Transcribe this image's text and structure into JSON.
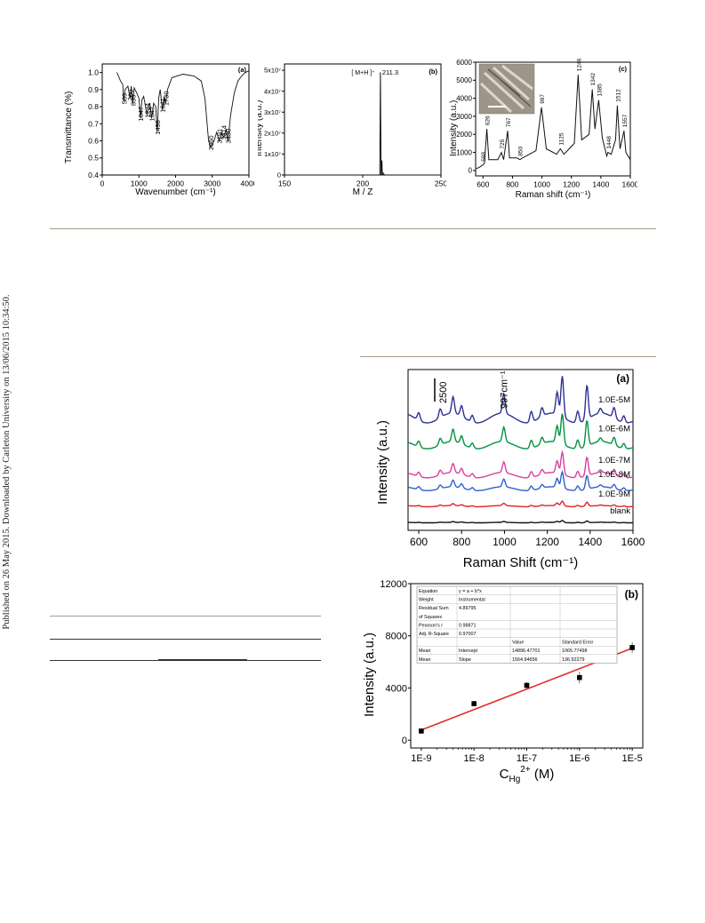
{
  "side_note": "Published on 26 May 2015. Downloaded by Carleton University on 13/06/2015 10:34:50.",
  "chart_data": [
    {
      "type": "line",
      "panel_label": "(a)",
      "xlabel": "Wavenumber (cm⁻¹)",
      "ylabel": "Transmittance (%)",
      "xlim": [
        0,
        4000
      ],
      "ylim": [
        0.4,
        1.05
      ],
      "x_ticks": [
        "0",
        "1000",
        "2000",
        "3000",
        "4000"
      ],
      "y_ticks": [
        "0.4",
        "0.5",
        "0.6",
        "0.7",
        "0.8",
        "0.9",
        "1.0"
      ],
      "annotations": [
        "589",
        "760",
        "835",
        "1047",
        "1224",
        "1347",
        "1498",
        "1641",
        "1730",
        "2960",
        "3191",
        "3314",
        "3430"
      ],
      "series": [
        {
          "x": [
            400,
            500,
            560,
            589,
            620,
            700,
            760,
            790,
            835,
            870,
            940,
            1000,
            1047,
            1080,
            1130,
            1180,
            1224,
            1260,
            1300,
            1347,
            1400,
            1460,
            1498,
            1540,
            1580,
            1641,
            1690,
            1730,
            1780,
            1900,
            2200,
            2500,
            2700,
            2800,
            2900,
            2960,
            3050,
            3120,
            3191,
            3250,
            3314,
            3380,
            3430,
            3500,
            3600,
            3700,
            3800,
            3900,
            4000
          ],
          "y": [
            1.0,
            0.95,
            0.93,
            0.83,
            0.9,
            0.92,
            0.85,
            0.92,
            0.82,
            0.91,
            0.88,
            0.85,
            0.73,
            0.84,
            0.86,
            0.8,
            0.75,
            0.8,
            0.82,
            0.73,
            0.82,
            0.8,
            0.65,
            0.85,
            0.9,
            0.78,
            0.86,
            0.82,
            0.9,
            0.97,
            0.99,
            0.98,
            0.95,
            0.85,
            0.6,
            0.56,
            0.6,
            0.65,
            0.6,
            0.65,
            0.62,
            0.67,
            0.6,
            0.75,
            0.88,
            0.95,
            0.98,
            1.0,
            1.01
          ]
        }
      ]
    },
    {
      "type": "line",
      "panel_label": "(b)",
      "xlabel": "M / Z",
      "ylabel": "Intensity (a.u.)",
      "xlim": [
        150,
        250
      ],
      "ylim": [
        0,
        53000000
      ],
      "x_ticks": [
        "150",
        "200",
        "250"
      ],
      "y_ticks": [
        "0",
        "1x10⁷",
        "2x10⁷",
        "3x10⁷",
        "4x10⁷",
        "5x10⁷"
      ],
      "annotations": [
        "[ M+H ]⁺",
        "211.3"
      ],
      "series": [
        {
          "x": [
            150,
            205,
            210.9,
            211.3,
            211.7,
            212.3,
            212.5,
            212.9,
            214,
            230,
            250
          ],
          "y": [
            0,
            0,
            0,
            49000000,
            0,
            7000000,
            0,
            1000000,
            0,
            0,
            0
          ]
        }
      ]
    },
    {
      "type": "line",
      "panel_label": "(c)",
      "xlabel": "Raman shift (cm⁻¹)",
      "ylabel": "Intensity (a.u.)",
      "xlim": [
        550,
        1600
      ],
      "ylim": [
        -300,
        6000
      ],
      "x_ticks": [
        "600",
        "800",
        "1000",
        "1200",
        "1400",
        "1600"
      ],
      "y_ticks": [
        "0",
        "1000",
        "2000",
        "3000",
        "4000",
        "5000",
        "6000"
      ],
      "annotations": [
        "598",
        "626",
        "725",
        "767",
        "850",
        "997",
        "1125",
        "1246",
        "1342",
        "1385",
        "1448",
        "1512",
        "1557"
      ],
      "series": [
        {
          "x": [
            555,
            580,
            598,
            610,
            626,
            640,
            700,
            725,
            740,
            767,
            780,
            830,
            850,
            870,
            960,
            997,
            1030,
            1100,
            1125,
            1150,
            1220,
            1246,
            1270,
            1320,
            1342,
            1360,
            1385,
            1410,
            1440,
            1448,
            1470,
            1500,
            1512,
            1530,
            1557,
            1570,
            1600
          ],
          "y": [
            100,
            200,
            300,
            400,
            2300,
            600,
            600,
            1000,
            600,
            2200,
            700,
            700,
            600,
            700,
            1100,
            3500,
            1200,
            900,
            1200,
            900,
            1500,
            5300,
            1700,
            2000,
            4500,
            2300,
            3900,
            1800,
            800,
            1000,
            900,
            1700,
            3600,
            1200,
            2200,
            1000,
            600
          ]
        }
      ]
    },
    {
      "type": "line",
      "panel_label": "(a)",
      "xlabel": "Raman Shift (cm⁻¹)",
      "ylabel": "Intensity (a.u.)",
      "xlim": [
        550,
        1600
      ],
      "x_ticks": [
        "600",
        "800",
        "1000",
        "1200",
        "1400",
        "1600"
      ],
      "scale_bar": "2500",
      "peak_label": "997cm⁻¹",
      "series": [
        {
          "name": "1.0E-5M",
          "color": "#2e3192",
          "offset": 5.4,
          "amp": 1.0
        },
        {
          "name": "1.0E-6M",
          "color": "#00923f",
          "offset": 4.0,
          "amp": 0.75
        },
        {
          "name": "1.0E-7M",
          "color": "#d83fa4",
          "offset": 2.45,
          "amp": 0.55
        },
        {
          "name": "1.0E-8M",
          "color": "#2f5fcf",
          "offset": 1.75,
          "amp": 0.4
        },
        {
          "name": "1.0E-9M",
          "color": "#e21f26",
          "offset": 0.85,
          "amp": 0.12
        },
        {
          "name": "blank",
          "color": "#111111",
          "offset": 0.0,
          "amp": 0.05
        }
      ],
      "peaks": [
        [
          600,
          0.4
        ],
        [
          700,
          0.45
        ],
        [
          760,
          0.85
        ],
        [
          800,
          0.55
        ],
        [
          850,
          0.35
        ],
        [
          997,
          1.0
        ],
        [
          1125,
          0.55
        ],
        [
          1175,
          0.45
        ],
        [
          1246,
          1.15
        ],
        [
          1270,
          2.1
        ],
        [
          1342,
          0.6
        ],
        [
          1385,
          1.75
        ],
        [
          1448,
          0.25
        ],
        [
          1512,
          0.55
        ],
        [
          1557,
          0.35
        ]
      ]
    },
    {
      "type": "scatter",
      "panel_label": "(b)",
      "xlabel": "C",
      "xlabel_sub": "Hg",
      "xlabel_sup": "2+",
      "xlabel_unit": " (M)",
      "ylabel": "Intensity (a.u.)",
      "xscale": "log",
      "xlim": [
        -9.2,
        -4.8
      ],
      "ylim": [
        -600,
        12000
      ],
      "x_ticks": [
        "1E-9",
        "1E-8",
        "1E-7",
        "1E-6",
        "1E-5"
      ],
      "y_ticks": [
        "0",
        "4000",
        "8000",
        "12000"
      ],
      "points": {
        "x": [
          -9,
          -8,
          -7,
          -6,
          -5
        ],
        "y": [
          700,
          2800,
          4200,
          4800,
          7100
        ],
        "err": [
          200,
          200,
          250,
          450,
          400
        ]
      },
      "fit_line": {
        "x": [
          -9,
          -5
        ],
        "y": [
          780,
          7050
        ],
        "color": "#e03030"
      },
      "stats_table": [
        [
          "Equation",
          "y = a + b*x",
          ""
        ],
        [
          "Weight",
          "Instrumental",
          ""
        ],
        [
          "Residual Sum of Squares",
          "4.89795",
          ""
        ],
        [
          "Pearson's r",
          "0.98871",
          ""
        ],
        [
          "Adj. R-Square",
          "0.97007",
          ""
        ],
        [
          "",
          "Value",
          "Standard Error"
        ],
        [
          "Mean",
          "Intercept",
          "14896.47701",
          "1065.77498"
        ],
        [
          "Mean",
          "Slope",
          "1564.94656",
          "136.92279"
        ]
      ]
    }
  ]
}
